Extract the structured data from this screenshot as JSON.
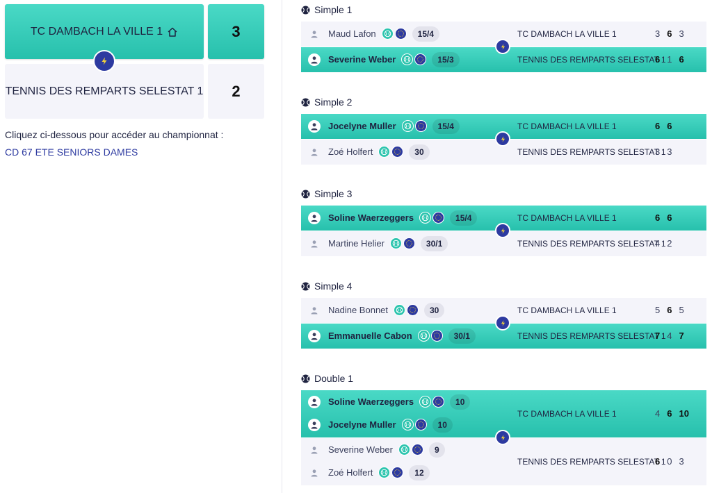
{
  "score": {
    "team1": {
      "name": "TC DAMBACH LA VILLE 1",
      "points": "3"
    },
    "team2": {
      "name": "TENNIS DES REMPARTS SELESTAT 1",
      "points": "2"
    }
  },
  "info": {
    "text": "Cliquez ci-dessous pour accéder au championnat :",
    "link": "CD 67 ETE SENIORS DAMES"
  },
  "icons": {
    "home": "home-icon",
    "bolt": "bolt-icon",
    "ball": "tennis-ball-icon",
    "fft": "fft-badge-icon",
    "avatar": "user-icon"
  },
  "colors": {
    "accent": "#2cc4ae",
    "navy": "#2d3aa0",
    "row_bg": "#f4f4fa"
  },
  "matches": [
    {
      "title": "Simple 1",
      "rows": [
        {
          "players": [
            {
              "name": "Maud Lafon",
              "rank": "15/4"
            }
          ],
          "team": "TC DAMBACH LA VILLE 1",
          "sets": [
            "3",
            "6",
            "3"
          ],
          "set_wins": [
            false,
            true,
            false
          ],
          "winner": false
        },
        {
          "players": [
            {
              "name": "Severine Weber",
              "rank": "15/3"
            }
          ],
          "team": "TENNIS DES REMPARTS SELESTAT 1",
          "sets": [
            "6",
            "1",
            "6"
          ],
          "set_wins": [
            true,
            false,
            true
          ],
          "winner": true
        }
      ]
    },
    {
      "title": "Simple 2",
      "rows": [
        {
          "players": [
            {
              "name": "Jocelyne Muller",
              "rank": "15/4"
            }
          ],
          "team": "TC DAMBACH LA VILLE 1",
          "sets": [
            "6",
            "6"
          ],
          "set_wins": [
            true,
            true
          ],
          "winner": true
        },
        {
          "players": [
            {
              "name": "Zoé Holfert",
              "rank": "30"
            }
          ],
          "team": "TENNIS DES REMPARTS SELESTAT 1",
          "sets": [
            "3",
            "3"
          ],
          "set_wins": [
            false,
            false
          ],
          "winner": false
        }
      ]
    },
    {
      "title": "Simple 3",
      "rows": [
        {
          "players": [
            {
              "name": "Soline Waerzeggers",
              "rank": "15/4"
            }
          ],
          "team": "TC DAMBACH LA VILLE 1",
          "sets": [
            "6",
            "6"
          ],
          "set_wins": [
            true,
            true
          ],
          "winner": true
        },
        {
          "players": [
            {
              "name": "Martine Helier",
              "rank": "30/1"
            }
          ],
          "team": "TENNIS DES REMPARTS SELESTAT 1",
          "sets": [
            "4",
            "2"
          ],
          "set_wins": [
            false,
            false
          ],
          "winner": false
        }
      ]
    },
    {
      "title": "Simple 4",
      "rows": [
        {
          "players": [
            {
              "name": "Nadine Bonnet",
              "rank": "30"
            }
          ],
          "team": "TC DAMBACH LA VILLE 1",
          "sets": [
            "5",
            "6",
            "5"
          ],
          "set_wins": [
            false,
            true,
            false
          ],
          "winner": false
        },
        {
          "players": [
            {
              "name": "Emmanuelle Cabon",
              "rank": "30/1"
            }
          ],
          "team": "TENNIS DES REMPARTS SELESTAT 1",
          "sets": [
            "7",
            "4",
            "7"
          ],
          "set_wins": [
            true,
            false,
            true
          ],
          "winner": true
        }
      ]
    },
    {
      "title": "Double 1",
      "rows": [
        {
          "players": [
            {
              "name": "Soline Waerzeggers",
              "rank": "10"
            },
            {
              "name": "Jocelyne Muller",
              "rank": "10"
            }
          ],
          "team": "TC DAMBACH LA VILLE 1",
          "sets": [
            "4",
            "6",
            "10"
          ],
          "set_wins": [
            false,
            true,
            true
          ],
          "winner": true
        },
        {
          "players": [
            {
              "name": "Severine Weber",
              "rank": "9"
            },
            {
              "name": "Zoé Holfert",
              "rank": "12"
            }
          ],
          "team": "TENNIS DES REMPARTS SELESTAT 1",
          "sets": [
            "6",
            "0",
            "3"
          ],
          "set_wins": [
            true,
            false,
            false
          ],
          "winner": false
        }
      ]
    }
  ]
}
